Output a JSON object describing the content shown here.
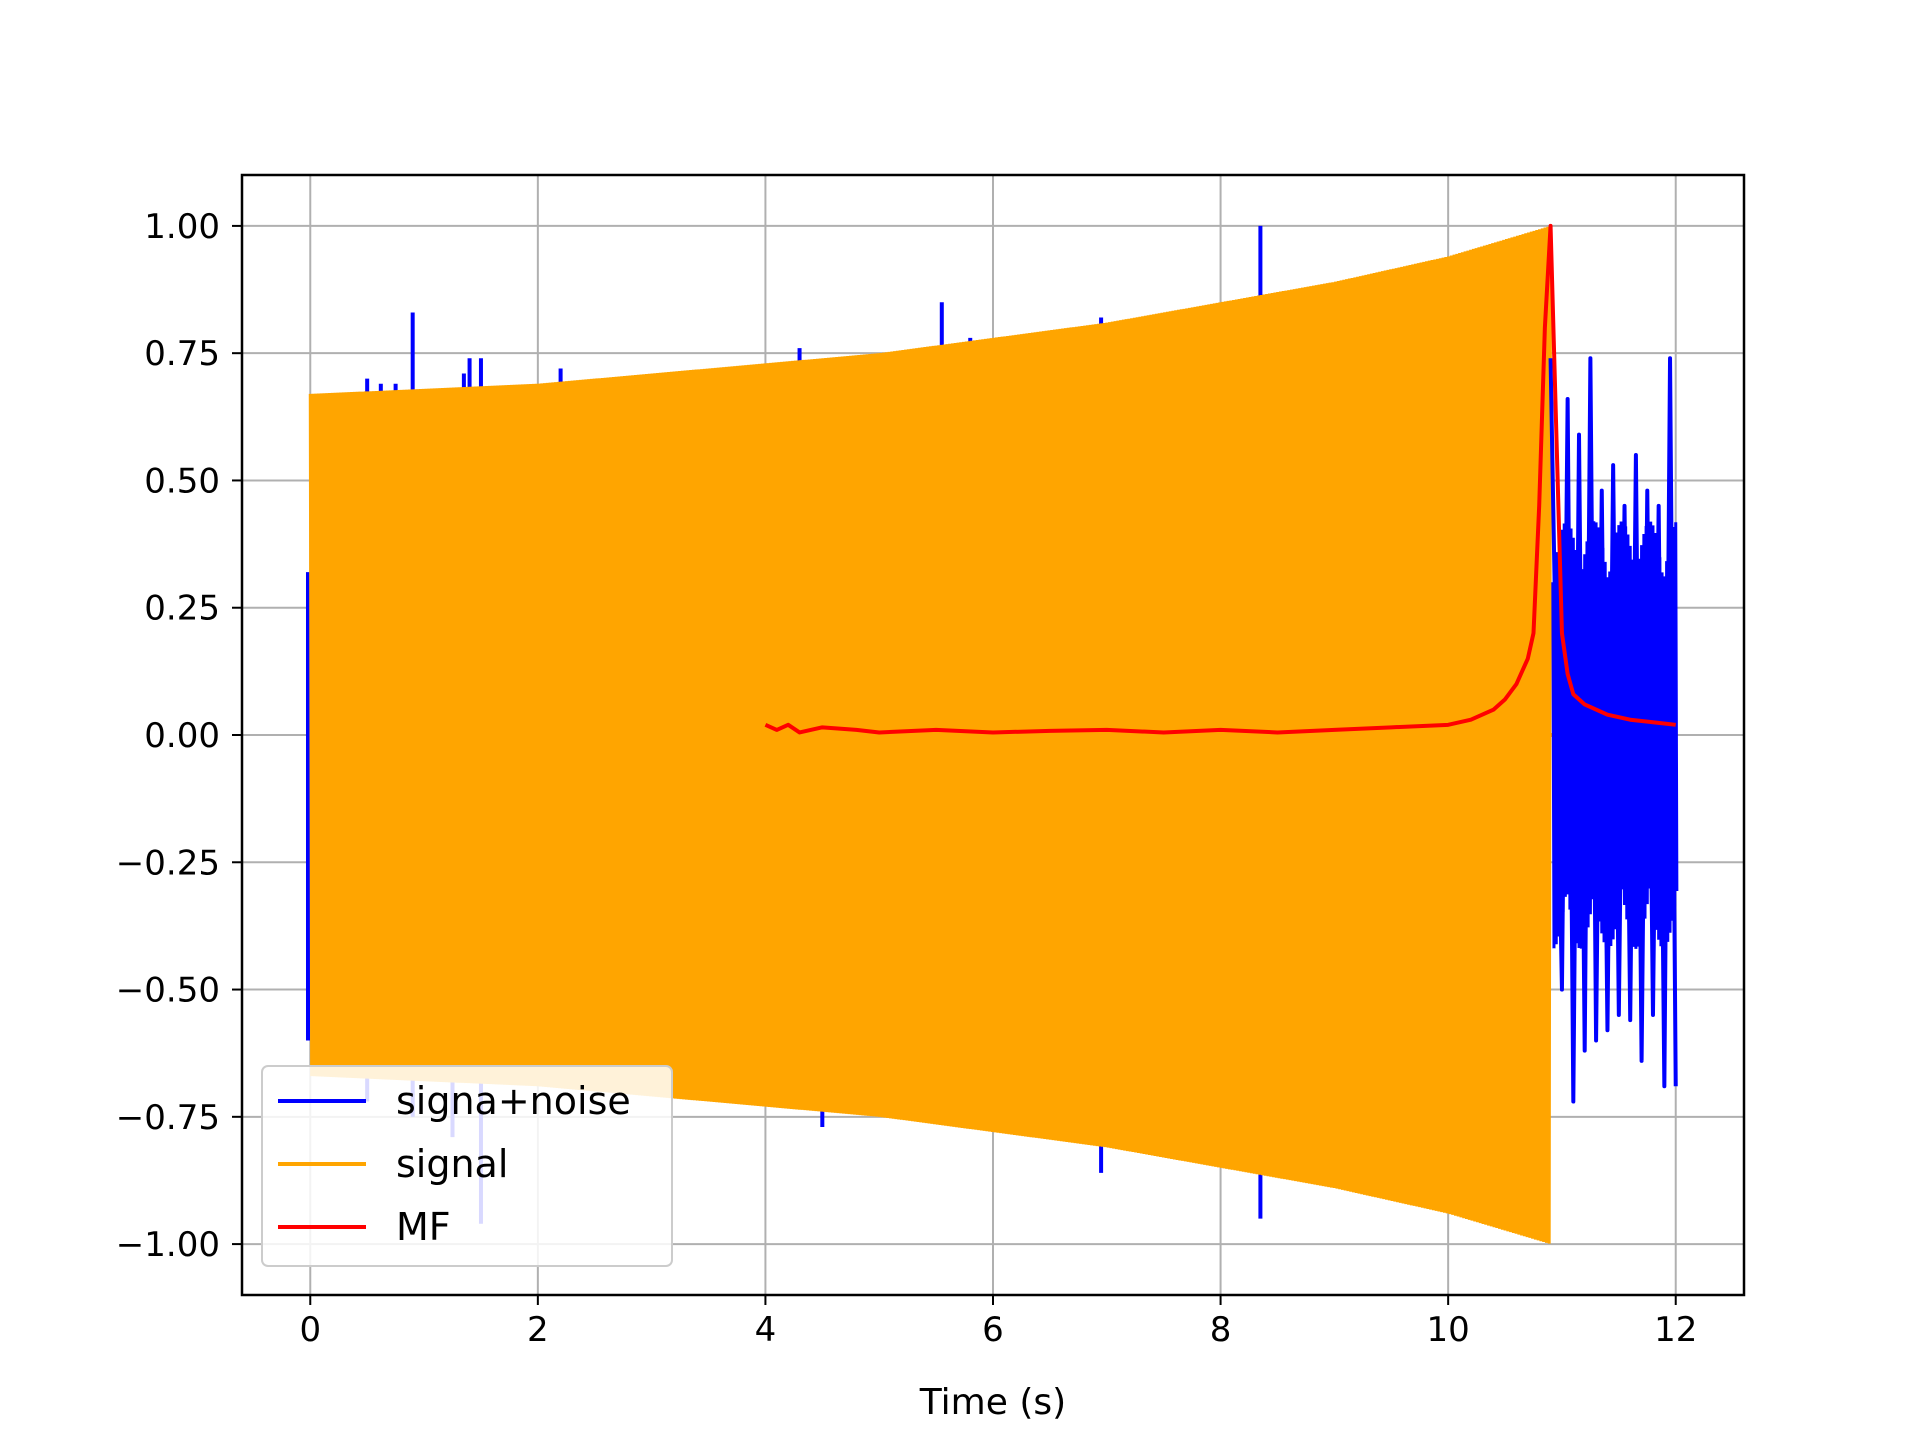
{
  "chart_data": {
    "type": "line",
    "title": "",
    "xlabel": "Time (s)",
    "ylabel": "",
    "xlim": [
      -0.6,
      12.6
    ],
    "ylim": [
      -1.1,
      1.1
    ],
    "grid": true,
    "legend_position": "lower-left",
    "x_ticks": [
      0,
      2,
      4,
      6,
      8,
      10,
      12
    ],
    "x_tick_labels": [
      "0",
      "2",
      "4",
      "6",
      "8",
      "10",
      "12"
    ],
    "y_ticks": [
      1.0,
      0.75,
      0.5,
      0.25,
      0.0,
      -0.25,
      -0.5,
      -0.75,
      -1.0
    ],
    "y_tick_labels": [
      "1.00",
      "0.75",
      "0.50",
      "0.25",
      "0.00",
      "−0.25",
      "−0.50",
      "−0.75",
      "−1.00"
    ],
    "series": [
      {
        "name": "signa+noise",
        "color": "#0000ff",
        "spikes_t": [
          0.5,
          0.62,
          0.75,
          0.9,
          1.35,
          1.4,
          1.5,
          2.2,
          4.3,
          5.55,
          5.8,
          6.95,
          8.35
        ],
        "spikes_v": [
          0.7,
          0.69,
          0.69,
          0.83,
          0.71,
          0.74,
          0.74,
          0.72,
          0.76,
          0.85,
          0.78,
          0.82,
          1.0
        ],
        "neg_spikes_t": [
          0.5,
          0.9,
          1.25,
          1.5,
          4.5,
          6.95,
          8.35
        ],
        "neg_spikes_v": [
          -0.72,
          -0.75,
          -0.79,
          -0.96,
          -0.77,
          -0.86,
          -0.95
        ],
        "tail_t": [
          10.9,
          11.0,
          11.05,
          11.1,
          11.15,
          11.2,
          11.25,
          11.3,
          11.35,
          11.4,
          11.45,
          11.5,
          11.55,
          11.6,
          11.65,
          11.7,
          11.75,
          11.8,
          11.85,
          11.9,
          11.95,
          12.0
        ],
        "tail_v": [
          0.74,
          -0.5,
          0.66,
          -0.72,
          0.59,
          -0.62,
          0.74,
          -0.6,
          0.48,
          -0.58,
          0.53,
          -0.55,
          0.45,
          -0.56,
          0.55,
          -0.64,
          0.48,
          -0.55,
          0.45,
          -0.69,
          0.74,
          -0.69
        ]
      },
      {
        "name": "signal",
        "color": "#ffa500",
        "t_start": 0.0,
        "t_end": 10.9,
        "envelope_t": [
          0.0,
          1.0,
          2.0,
          3.0,
          4.0,
          5.0,
          6.0,
          7.0,
          8.0,
          9.0,
          10.0,
          10.9
        ],
        "envelope_v": [
          0.67,
          0.68,
          0.69,
          0.71,
          0.73,
          0.75,
          0.78,
          0.81,
          0.85,
          0.89,
          0.94,
          1.0
        ],
        "after_t": [
          10.9,
          12.0
        ],
        "after_v": [
          0.0,
          0.0
        ]
      },
      {
        "name": "MF",
        "color": "#ff0000",
        "x": [
          4.0,
          4.1,
          4.2,
          4.3,
          4.5,
          4.8,
          5.0,
          5.5,
          6.0,
          6.5,
          7.0,
          7.5,
          8.0,
          8.5,
          9.0,
          9.5,
          10.0,
          10.2,
          10.4,
          10.5,
          10.6,
          10.7,
          10.75,
          10.8,
          10.85,
          10.9,
          10.95,
          11.0,
          11.05,
          11.1,
          11.2,
          11.3,
          11.4,
          11.6,
          11.8,
          12.0
        ],
        "y": [
          0.02,
          0.01,
          0.02,
          0.005,
          0.015,
          0.01,
          0.005,
          0.01,
          0.005,
          0.008,
          0.01,
          0.005,
          0.01,
          0.005,
          0.01,
          0.015,
          0.02,
          0.03,
          0.05,
          0.07,
          0.1,
          0.15,
          0.2,
          0.45,
          0.8,
          1.0,
          0.6,
          0.2,
          0.12,
          0.08,
          0.06,
          0.05,
          0.04,
          0.03,
          0.025,
          0.02
        ]
      }
    ]
  }
}
